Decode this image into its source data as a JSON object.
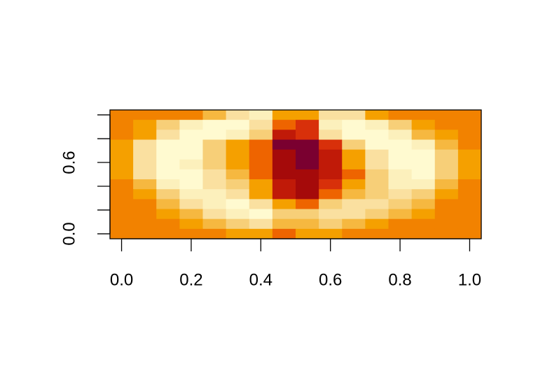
{
  "chart_data": {
    "type": "heatmap",
    "xlim": [
      -0.0333,
      1.0333
    ],
    "ylim": [
      -0.0417,
      1.0417
    ],
    "xticks": [
      {
        "value": 0,
        "label": "0.0"
      },
      {
        "value": 0.2,
        "label": "0.2"
      },
      {
        "value": 0.4,
        "label": "0.4"
      },
      {
        "value": 0.6,
        "label": "0.6"
      },
      {
        "value": 0.8,
        "label": "0.8"
      },
      {
        "value": 1,
        "label": "1.0"
      }
    ],
    "yticks": [
      {
        "value": 0,
        "label": "0.0"
      },
      {
        "value": 0.2,
        "label": null
      },
      {
        "value": 0.4,
        "label": null
      },
      {
        "value": 0.6,
        "label": "0.6"
      },
      {
        "value": 0.8,
        "label": null
      },
      {
        "value": 1,
        "label": null
      }
    ],
    "palette": [
      "#f28200",
      "#f5a000",
      "#f6b840",
      "#f7cf78",
      "#fae0a0",
      "#fcf0bc",
      "#fffad0",
      "#ee6400",
      "#d8300a",
      "#c01a08",
      "#a50a0a",
      "#7a0030"
    ],
    "z": [
      [
        0,
        0,
        0,
        0,
        2,
        4,
        5,
        1,
        1,
        4,
        4,
        1,
        0,
        0,
        0,
        0
      ],
      [
        0,
        1,
        3,
        5,
        6,
        6,
        4,
        7,
        8,
        5,
        6,
        5,
        3,
        1,
        0,
        0
      ],
      [
        0,
        1,
        4,
        6,
        6,
        5,
        3,
        9,
        8,
        4,
        6,
        6,
        5,
        2,
        1,
        0
      ],
      [
        1,
        4,
        6,
        6,
        3,
        1,
        7,
        11,
        11,
        8,
        3,
        6,
        6,
        5,
        2,
        0
      ],
      [
        1,
        4,
        6,
        6,
        3,
        1,
        7,
        10,
        11,
        9,
        1,
        4,
        6,
        6,
        3,
        1
      ],
      [
        1,
        4,
        6,
        5,
        3,
        1,
        7,
        10,
        11,
        9,
        1,
        4,
        6,
        6,
        3,
        1
      ],
      [
        1,
        4,
        6,
        6,
        4,
        2,
        7,
        10,
        10,
        9,
        7,
        3,
        5,
        6,
        3,
        1
      ],
      [
        0,
        2,
        5,
        6,
        4,
        3,
        1,
        9,
        10,
        8,
        1,
        3,
        5,
        5,
        2,
        0
      ],
      [
        0,
        1,
        3,
        5,
        5,
        4,
        1,
        9,
        10,
        7,
        2,
        3,
        4,
        3,
        1,
        0
      ],
      [
        0,
        0,
        2,
        4,
        5,
        6,
        4,
        1,
        7,
        3,
        4,
        4,
        3,
        2,
        0,
        0
      ],
      [
        0,
        0,
        1,
        2,
        4,
        5,
        6,
        3,
        3,
        4,
        4,
        3,
        2,
        1,
        0,
        0
      ],
      [
        0,
        0,
        0,
        1,
        2,
        3,
        4,
        2,
        2,
        3,
        2,
        1,
        0,
        0,
        0,
        0
      ],
      [
        0,
        0,
        0,
        0,
        0,
        1,
        1,
        7,
        1,
        1,
        0,
        0,
        0,
        0,
        0,
        0
      ]
    ]
  }
}
